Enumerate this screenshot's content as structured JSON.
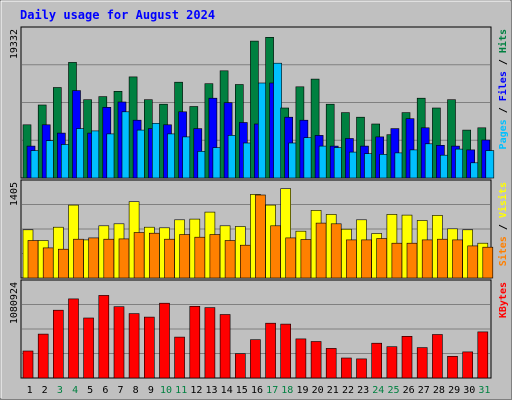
{
  "chart_data": {
    "type": "bar",
    "title": "Daily usage for August 2024",
    "x": [
      "1",
      "2",
      "3",
      "4",
      "5",
      "6",
      "7",
      "8",
      "9",
      "10",
      "11",
      "12",
      "13",
      "14",
      "15",
      "16",
      "17",
      "18",
      "19",
      "20",
      "21",
      "22",
      "23",
      "24",
      "25",
      "26",
      "27",
      "28",
      "29",
      "30",
      "31"
    ],
    "weekend_days": [
      "3",
      "4",
      "10",
      "11",
      "17",
      "18",
      "24",
      "25",
      "31"
    ],
    "panels": [
      {
        "id": "hits-files-pages",
        "ymax": 19332,
        "ymax_label": "19332",
        "grid": true,
        "legend_parts": [
          {
            "text": "Pages",
            "color": "#00c0ff"
          },
          {
            "text": " / ",
            "color": "#000000"
          },
          {
            "text": "Files",
            "color": "#0000ff"
          },
          {
            "text": " / ",
            "color": "#000000"
          },
          {
            "text": "Hits",
            "color": "#008040"
          }
        ],
        "series": [
          {
            "name": "Hits",
            "color": "#008040",
            "values": [
              7000,
              9600,
              11900,
              15200,
              10300,
              10700,
              11400,
              13300,
              10300,
              9700,
              12600,
              9400,
              12400,
              14100,
              12300,
              18000,
              18500,
              9200,
              12000,
              13000,
              9700,
              8600,
              8000,
              7100,
              5700,
              8600,
              10500,
              9200,
              10300,
              6300,
              6600
            ]
          },
          {
            "name": "Files",
            "color": "#0000ff",
            "values": [
              4200,
              7000,
              5900,
              11500,
              5900,
              9300,
              10000,
              7600,
              6500,
              7000,
              8700,
              6500,
              10500,
              9900,
              7300,
              7100,
              12500,
              8000,
              7600,
              5600,
              4200,
              5200,
              4200,
              5400,
              6500,
              7800,
              6600,
              4300,
              4200,
              3700,
              5000
            ]
          },
          {
            "name": "Pages",
            "color": "#00c0ff",
            "values": [
              3600,
              4900,
              4400,
              6500,
              6200,
              5800,
              8700,
              6300,
              7200,
              5800,
              5400,
              3500,
              4000,
              5600,
              4600,
              12500,
              15100,
              4600,
              5300,
              4200,
              4000,
              3400,
              3200,
              3100,
              3300,
              3700,
              4500,
              3000,
              3800,
              2000,
              3600
            ]
          }
        ]
      },
      {
        "id": "visits-sites",
        "ymax": 1405,
        "ymax_label": "1405",
        "grid": true,
        "legend_parts": [
          {
            "text": "Sites",
            "color": "#ff8000"
          },
          {
            "text": " / ",
            "color": "#000000"
          },
          {
            "text": "Visits",
            "color": "#ffff00"
          }
        ],
        "series": [
          {
            "name": "Visits",
            "color": "#ffff00",
            "values": [
              720,
              560,
              760,
              1090,
              570,
              780,
              810,
              1140,
              760,
              750,
              870,
              880,
              985,
              780,
              770,
              1250,
              1090,
              1335,
              700,
              1010,
              950,
              730,
              870,
              665,
              950,
              940,
              860,
              935,
              735,
              720,
              520
            ]
          },
          {
            "name": "Sites",
            "color": "#ff8000",
            "values": [
              560,
              450,
              430,
              580,
              600,
              580,
              585,
              680,
              670,
              580,
              650,
              610,
              650,
              560,
              490,
              1240,
              780,
              600,
              575,
              820,
              810,
              570,
              570,
              590,
              520,
              520,
              570,
              580,
              570,
              480,
              460
            ]
          }
        ]
      },
      {
        "id": "kbytes",
        "ymax": 1080924,
        "ymax_label": "1080924",
        "grid": true,
        "legend_parts": [
          {
            "text": "KBytes",
            "color": "#ff0000"
          }
        ],
        "series": [
          {
            "name": "KBytes",
            "color": "#ff0000",
            "values": [
              310000,
              505000,
              780000,
              910000,
              690000,
              950000,
              820000,
              740000,
              700000,
              860000,
              470000,
              825000,
              810000,
              730000,
              280000,
              440000,
              630000,
              620000,
              450000,
              420000,
              340000,
              230000,
              220000,
              400000,
              360000,
              480000,
              350000,
              500000,
              250000,
              300000,
              530000
            ]
          }
        ]
      }
    ]
  }
}
